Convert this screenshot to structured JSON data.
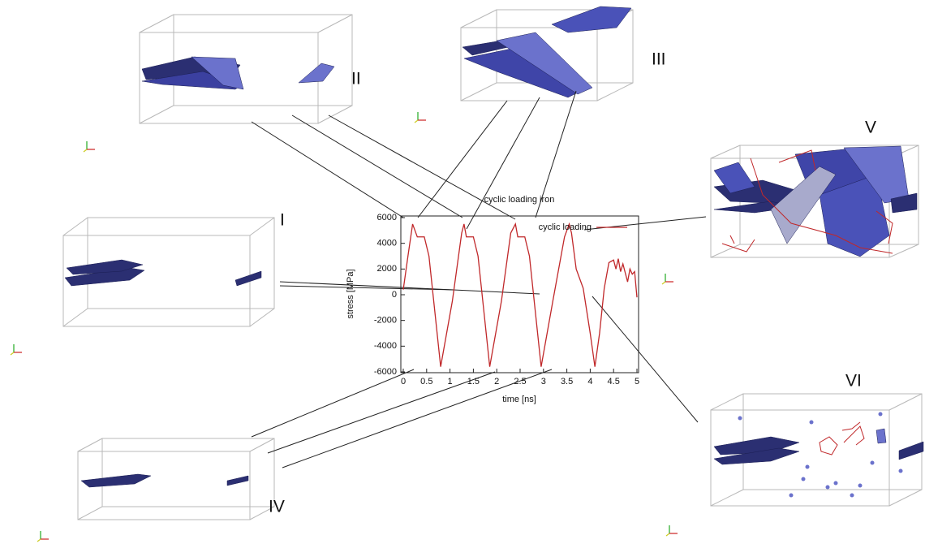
{
  "chart_data": {
    "type": "line",
    "title": "cyclic loading iron",
    "xlabel": "time [ns]",
    "ylabel": "stress [MPa]",
    "x": [
      0,
      0.1,
      0.2,
      0.25,
      0.3,
      0.45,
      0.55,
      0.8,
      1.05,
      1.25,
      1.3,
      1.35,
      1.5,
      1.6,
      1.85,
      2.1,
      2.3,
      2.4,
      2.45,
      2.6,
      2.7,
      2.95,
      3.2,
      3.45,
      3.55,
      3.6,
      3.7,
      3.85,
      4.0,
      4.1,
      4.2,
      4.3,
      4.4,
      4.5,
      4.55,
      4.6,
      4.65,
      4.7,
      4.8,
      4.85,
      4.9,
      4.95,
      5.0
    ],
    "series": [
      {
        "name": "cyclic loading",
        "color": "#c0282a",
        "values": [
          400,
          3000,
          5500,
          5000,
          4500,
          4500,
          3000,
          -5600,
          -500,
          4800,
          5500,
          4500,
          4500,
          3000,
          -5600,
          -500,
          4800,
          5500,
          4500,
          4500,
          3000,
          -5600,
          -500,
          4500,
          5500,
          4800,
          2000,
          500,
          -3000,
          -5600,
          -3000,
          500,
          2500,
          2700,
          2000,
          2800,
          1800,
          2400,
          1000,
          2000,
          1600,
          1800,
          -200
        ]
      }
    ],
    "xlim": [
      0,
      5
    ],
    "ylim": [
      -6000,
      6000
    ],
    "xticks": [
      0,
      0.5,
      1,
      1.5,
      2,
      2.5,
      3,
      3.5,
      4,
      4.5,
      5
    ],
    "yticks": [
      -6000,
      -4000,
      -2000,
      0,
      2000,
      4000,
      6000
    ],
    "legend": "top-right",
    "annotations": [
      "I",
      "II",
      "III",
      "IV",
      "V",
      "VI"
    ]
  }
}
